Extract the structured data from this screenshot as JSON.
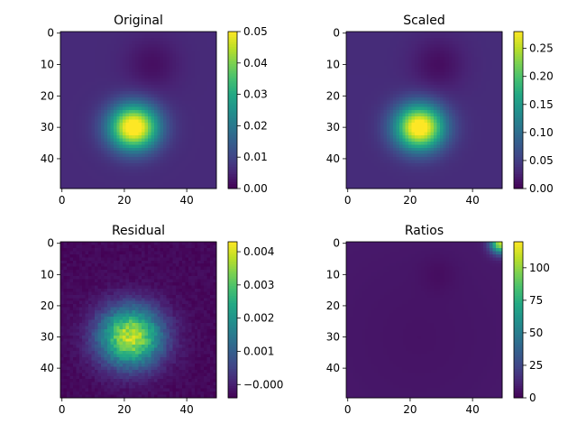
{
  "chart_data": [
    {
      "type": "heatmap",
      "title": "Original",
      "shape": [
        50,
        50
      ],
      "x_ticks": [
        0,
        20,
        40
      ],
      "y_ticks": [
        0,
        10,
        20,
        30,
        40
      ],
      "colorbar": {
        "range": [
          0,
          0.05
        ],
        "ticks": [
          "0.00",
          "0.01",
          "0.02",
          "0.03",
          "0.04",
          "0.05"
        ],
        "tick_values": [
          0,
          0.01,
          0.02,
          0.03,
          0.04,
          0.05
        ]
      },
      "field": {
        "kind": "blob",
        "peak": [
          23,
          30
        ],
        "sigma": [
          5.5,
          5.0
        ],
        "amplitude": 0.049,
        "background": 0.006,
        "dip": [
          29,
          10
        ],
        "dip_sigma": 6,
        "dip_depth": 0.004
      }
    },
    {
      "type": "heatmap",
      "title": "Scaled",
      "shape": [
        50,
        50
      ],
      "x_ticks": [
        0,
        20,
        40
      ],
      "y_ticks": [
        0,
        10,
        20,
        30,
        40
      ],
      "colorbar": {
        "range": [
          0,
          0.28
        ],
        "ticks": [
          "0.00",
          "0.05",
          "0.10",
          "0.15",
          "0.20",
          "0.25"
        ],
        "tick_values": [
          0,
          0.05,
          0.1,
          0.15,
          0.2,
          0.25
        ]
      },
      "field": {
        "kind": "blob",
        "peak": [
          23,
          30
        ],
        "sigma": [
          5.5,
          5.0
        ],
        "amplitude": 0.27,
        "background": 0.035,
        "dip": [
          29,
          10
        ],
        "dip_sigma": 6,
        "dip_depth": 0.025
      }
    },
    {
      "type": "heatmap",
      "title": "Residual",
      "shape": [
        50,
        50
      ],
      "x_ticks": [
        0,
        20,
        40
      ],
      "y_ticks": [
        0,
        10,
        20,
        30,
        40
      ],
      "colorbar": {
        "range": [
          -0.0004,
          0.0043
        ],
        "ticks": [
          "−0.000",
          "0.001",
          "0.002",
          "0.003",
          "0.004"
        ],
        "tick_values": [
          0,
          0.001,
          0.002,
          0.003,
          0.004
        ]
      },
      "field": {
        "kind": "noisy-blob",
        "peak": [
          22,
          30
        ],
        "sigma": [
          7,
          6.5
        ],
        "amplitude": 0.0042,
        "background": -0.0003,
        "noise": 0.00035
      }
    },
    {
      "type": "heatmap",
      "title": "Ratios",
      "shape": [
        50,
        50
      ],
      "x_ticks": [
        0,
        20,
        40
      ],
      "y_ticks": [
        0,
        10,
        20,
        30,
        40
      ],
      "colorbar": {
        "range": [
          0,
          120
        ],
        "ticks": [
          "0",
          "25",
          "50",
          "75",
          "100"
        ],
        "tick_values": [
          0,
          25,
          50,
          75,
          100
        ]
      },
      "field": {
        "kind": "ratio",
        "base": 6,
        "center": [
          23,
          30
        ],
        "gradient": 0.06,
        "dip": [
          29,
          10
        ],
        "dip_sigma": 4,
        "dip_depth": 3,
        "corner": [
          49,
          0
        ],
        "corner_value": 100,
        "corner_sigma": 2.2
      }
    }
  ]
}
